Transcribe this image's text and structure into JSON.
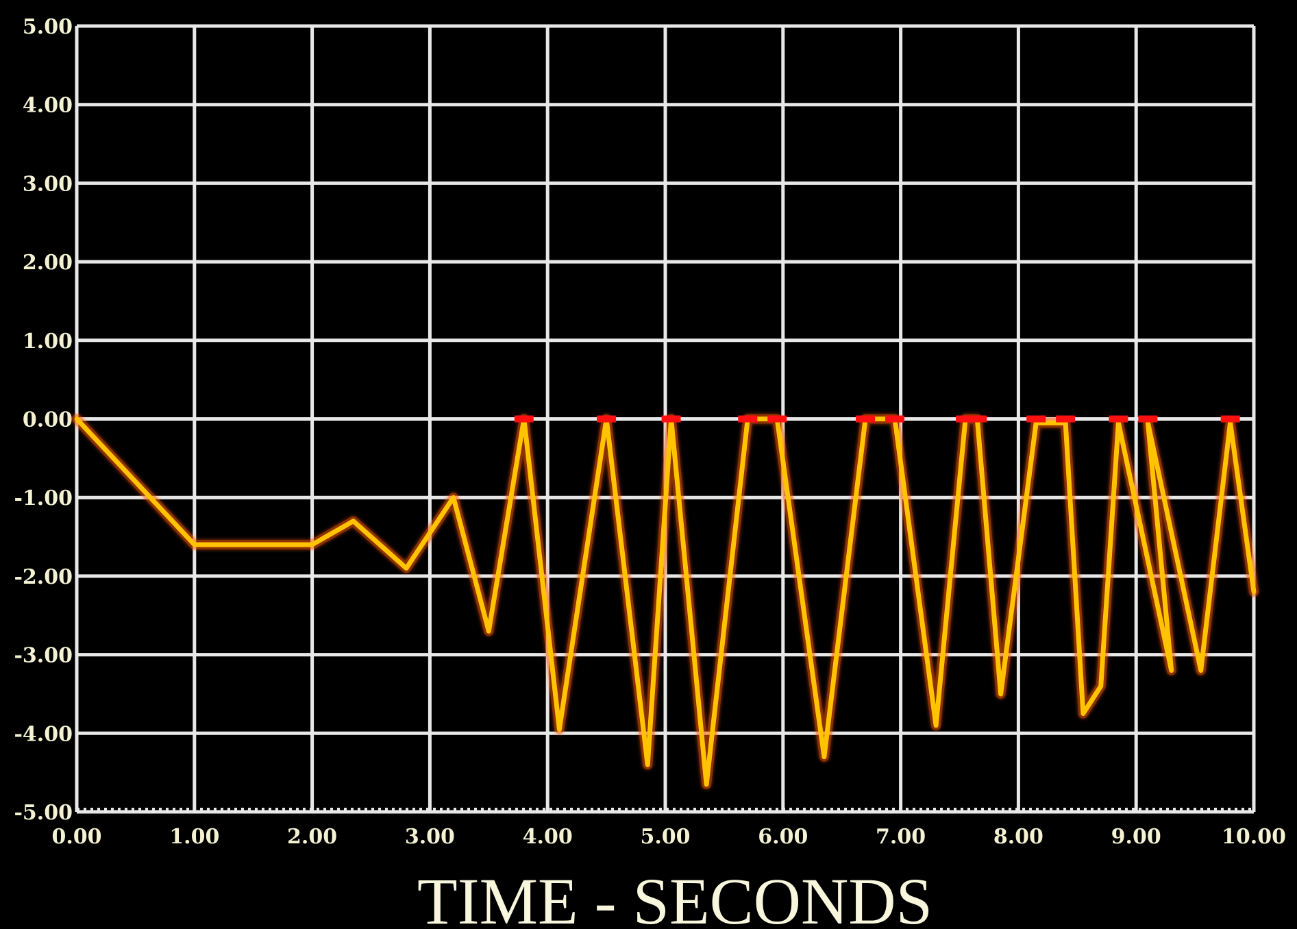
{
  "chart_data": {
    "type": "line",
    "title": "",
    "xlabel": "TIME -  SECONDS",
    "ylabel": "",
    "xlim": [
      0,
      10
    ],
    "ylim": [
      -5,
      5
    ],
    "grid": true,
    "x_ticks": [
      "0.00",
      "1.00",
      "2.00",
      "3.00",
      "4.00",
      "5.00",
      "6.00",
      "7.00",
      "8.00",
      "9.00",
      "10.00"
    ],
    "y_ticks": [
      "5.00",
      "4.00",
      "3.00",
      "2.00",
      "1.00",
      "0.00",
      "-1.00",
      "-2.00",
      "-3.00",
      "-4.00",
      "-5.00"
    ],
    "colors": {
      "background": "#000000",
      "grid": "#e8e8e8",
      "line": "#ffc300",
      "line_glow": "#ff5a00",
      "clip_marker": "#ff1010",
      "text": "#f4f2d2"
    },
    "series": [
      {
        "name": "",
        "x": [
          0.0,
          1.0,
          2.0,
          2.35,
          2.8,
          3.2,
          3.5,
          3.8,
          4.1,
          4.5,
          4.85,
          5.05,
          5.35,
          5.7,
          5.95,
          6.35,
          6.7,
          6.95,
          7.3,
          7.55,
          7.65,
          7.85,
          8.15,
          8.4,
          8.55,
          8.7,
          8.85,
          9.3,
          9.1,
          9.55,
          9.8,
          10.0
        ],
        "y": [
          0.0,
          -1.6,
          -1.6,
          -1.3,
          -1.9,
          -1.0,
          -2.7,
          -0.0,
          -3.95,
          0.0,
          -4.4,
          -0.0,
          -4.65,
          0.0,
          0.0,
          -4.3,
          0.0,
          -0.0,
          -3.9,
          -0.0,
          -0.0,
          -3.5,
          -0.05,
          -0.05,
          -3.75,
          -3.4,
          -0.05,
          -3.2,
          -0.05,
          -3.2,
          -0.05,
          -2.2
        ]
      }
    ]
  }
}
